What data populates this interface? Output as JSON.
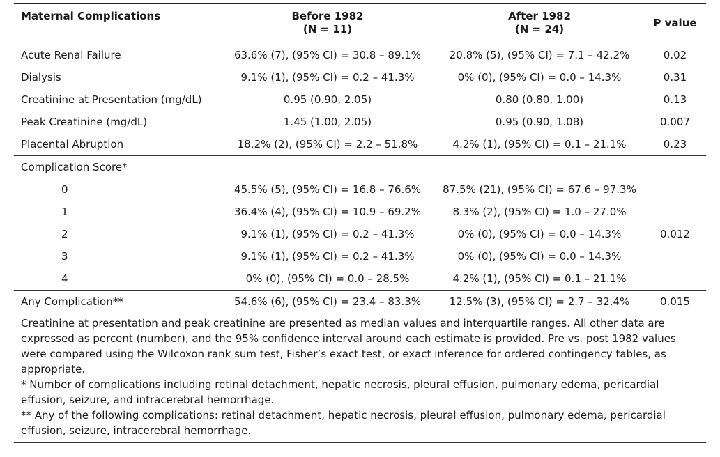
{
  "header": {
    "col1": "Maternal Complications",
    "col2_line1": "Before 1982",
    "col2_line2": "(N = 11)",
    "col3_line1": "After 1982",
    "col3_line2": "(N = 24)",
    "col4": "P value"
  },
  "rows": [
    {
      "label": "Acute Renal Failure",
      "before": "63.6% (7), (95% CI) = 30.8 – 89.1%",
      "after": "20.8% (5), (95% CI) = 7.1 – 42.2%",
      "p": "0.02"
    },
    {
      "label": "Dialysis",
      "before": "9.1% (1), (95% CI) = 0.2 – 41.3%",
      "after": "0% (0), (95% CI) = 0.0 – 14.3%",
      "p": "0.31"
    },
    {
      "label": "Creatinine at Presentation (mg/dL)",
      "before": "0.95 (0.90, 2.05)",
      "after": "0.80 (0.80, 1.00)",
      "p": "0.13"
    },
    {
      "label": "Peak Creatinine (mg/dL)",
      "before": "1.45 (1.00, 2.05)",
      "after": "0.95 (0.90, 1.08)",
      "p": "0.007"
    },
    {
      "label": "Placental Abruption",
      "before": "18.2% (2), (95% CI) = 2.2 – 51.8%",
      "after": "4.2% (1), (95% CI) = 0.1 – 21.1%",
      "p": "0.23"
    }
  ],
  "score": {
    "label": "Complication Score*",
    "p": "0.012",
    "rows": [
      {
        "label": "0",
        "before": "45.5% (5), (95% CI) = 16.8 – 76.6%",
        "after": "87.5% (21), (95% CI) = 67.6 – 97.3%"
      },
      {
        "label": "1",
        "before": "36.4% (4), (95% CI) = 10.9 – 69.2%",
        "after": "8.3% (2), (95% CI) = 1.0 – 27.0%"
      },
      {
        "label": "2",
        "before": "9.1% (1), (95% CI) = 0.2 – 41.3%",
        "after": "0% (0), (95% CI) = 0.0 – 14.3%"
      },
      {
        "label": "3",
        "before": "9.1% (1), (95% CI) = 0.2 – 41.3%",
        "after": "0% (0), (95% CI) = 0.0 – 14.3%"
      },
      {
        "label": "4",
        "before": "0% (0), (95% CI) = 0.0 – 28.5%",
        "after": "4.2% (1), (95% CI) = 0.1 – 21.1%"
      }
    ]
  },
  "any": {
    "label": "Any Complication**",
    "before": "54.6% (6), (95% CI) = 23.4 – 83.3%",
    "after": "12.5% (3), (95% CI) = 2.7 – 32.4%",
    "p": "0.015"
  },
  "notes": {
    "main": "Creatinine at presentation and peak creatinine are presented as median values and interquartile ranges. All other data are expressed as percent (number), and the 95% confidence interval around each estimate is provided. Pre vs. post 1982 values were compared using the Wilcoxon rank sum test, Fisher’s exact test, or exact inference for ordered contingency tables, as appropriate.",
    "star1": "* Number of complications including retinal detachment, hepatic necrosis, pleural effusion, pulmonary edema, pericardial effusion, seizure, and intracerebral hemorrhage.",
    "star2": "** Any of the following complications: retinal detachment, hepatic necrosis, pleural effusion, pulmonary edema, pericardial effusion, seizure, intracerebral hemorrhage."
  }
}
